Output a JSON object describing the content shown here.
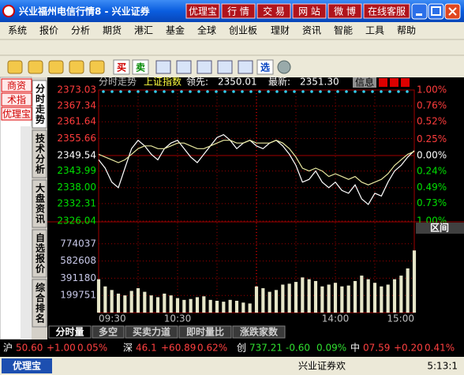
{
  "window": {
    "title": "兴业福州电信行情8 - 兴业证券",
    "buttons": [
      "优理宝",
      "行 情",
      "交 易",
      "网 站",
      "微 博",
      "在线客服"
    ]
  },
  "menu": [
    "系统",
    "报价",
    "分析",
    "期货",
    "港汇",
    "基金",
    "全球",
    "创业板",
    "理财",
    "资讯",
    "智能",
    "工具",
    "帮助"
  ],
  "toolbar": {
    "buy": "买",
    "sell": "卖",
    "pick": "选"
  },
  "side_list": [
    "商资",
    "术指",
    "优理宝"
  ],
  "side_tabs": [
    "分时走势",
    "技术分析",
    "大盘资讯",
    "自选报价",
    "综合排名"
  ],
  "header": {
    "view": "分时走势",
    "index": "上证指数",
    "lead_label": "领先:",
    "lead": "2350.01",
    "last_label": "最新:",
    "last": "2351.30",
    "info": "信息"
  },
  "chart_data": [
    {
      "type": "line",
      "categories": [
        "09:30",
        null,
        null,
        null,
        null,
        null,
        null,
        null,
        null,
        null,
        null,
        null,
        "10:30",
        null,
        null,
        null,
        null,
        null,
        null,
        null,
        null,
        null,
        null,
        null,
        null,
        null,
        null,
        null,
        null,
        null,
        null,
        null,
        null,
        null,
        null,
        null,
        "14:00",
        null,
        null,
        null,
        null,
        null,
        null,
        null,
        null,
        null,
        null,
        null,
        "15:00"
      ],
      "series": [
        {
          "color": "#ffffff",
          "values": [
            2348,
            2345,
            2340,
            2338,
            2345,
            2352,
            2355,
            2353,
            2350,
            2348,
            2352,
            2354,
            2355,
            2352,
            2349,
            2347,
            2350,
            2353,
            2356,
            2357,
            2355,
            2352,
            2354,
            2355,
            2353,
            2352,
            2354,
            2355,
            2353,
            2350,
            2346,
            2340,
            2341,
            2344,
            2340,
            2338,
            2340,
            2337,
            2336,
            2339,
            2334,
            2332,
            2336,
            2335,
            2340,
            2344,
            2346,
            2349,
            2351.3
          ]
        },
        {
          "color": "#e8e8a0",
          "values": [
            2350,
            2349,
            2348,
            2347,
            2348,
            2350,
            2352,
            2353,
            2353,
            2352,
            2352,
            2353,
            2354,
            2354,
            2353,
            2352,
            2352,
            2353,
            2354,
            2355,
            2355,
            2354,
            2354,
            2355,
            2354,
            2354,
            2354,
            2355,
            2354,
            2352,
            2349,
            2345,
            2344,
            2345,
            2344,
            2342,
            2343,
            2342,
            2341,
            2342,
            2340,
            2339,
            2340,
            2341,
            2343,
            2346,
            2348,
            2350,
            2351
          ]
        }
      ],
      "ylim": [
        2326.04,
        2373.03
      ],
      "yticks": [
        2373.03,
        2367.34,
        2361.64,
        2355.66,
        2349.54,
        2343.99,
        {
          "value": 2338,
          "label": "2338.00"
        },
        2332.31,
        2326.04
      ],
      "y2lim": [
        -1,
        1
      ],
      "y2ticks": [
        {
          "value": 1,
          "label": "1.00%"
        },
        {
          "value": 0.76,
          "label": "0.76%"
        },
        {
          "value": 0.52,
          "label": "0.52%"
        },
        {
          "value": 0.25,
          "label": "0.25%"
        },
        {
          "value": 0,
          "label": "0.00%"
        },
        {
          "value": -0.24,
          "label": "0.24%"
        },
        {
          "value": -0.49,
          "label": "0.49%"
        },
        {
          "value": -0.73,
          "label": "0.73%"
        },
        {
          "value": -1,
          "label": "1.00%"
        }
      ],
      "up_color": "#ff3c3c",
      "down_color": "#00e000",
      "flat_color": "#ffffff",
      "grid": true
    },
    {
      "type": "bar",
      "color": "#e6e6c8",
      "values": [
        380000,
        300000,
        260000,
        220000,
        200000,
        250000,
        280000,
        240000,
        200000,
        180000,
        220000,
        200000,
        170000,
        150000,
        160000,
        180000,
        190000,
        150000,
        140000,
        130000,
        150000,
        140000,
        120000,
        110000,
        300000,
        280000,
        240000,
        260000,
        320000,
        330000,
        350000,
        400000,
        380000,
        360000,
        300000,
        320000,
        340000,
        300000,
        310000,
        360000,
        420000,
        380000,
        340000,
        300000,
        320000,
        380000,
        420000,
        500000,
        700000
      ],
      "ylim": [
        8322,
        965466
      ],
      "yticks": [
        774037,
        582608,
        391180,
        199751
      ],
      "grid": true,
      "range_label": "区间"
    }
  ],
  "tabs": [
    "分时量",
    "多空",
    "买卖力道",
    "即时量比",
    "涨跌家数"
  ],
  "status": {
    "quotes": [
      {
        "name": "沪",
        "price": "50.60",
        "change": "+1.00",
        "pct": "0.05%",
        "color": "#ff4040"
      },
      {
        "name": "深",
        "price": "46.1",
        "change": "+60.89",
        "pct": "0.62%",
        "color": "#ff4040"
      },
      {
        "name": "创",
        "price": "737.21",
        "change": "-0.60",
        "pct": "0.09%",
        "color": "#30e030"
      },
      {
        "name": "中",
        "price": "07.59",
        "change": "+0.20",
        "pct": "0.41%",
        "color": "#ff4040"
      }
    ],
    "brand": "优理宝",
    "broker": "兴业证券欢",
    "time": "5:13:1"
  }
}
